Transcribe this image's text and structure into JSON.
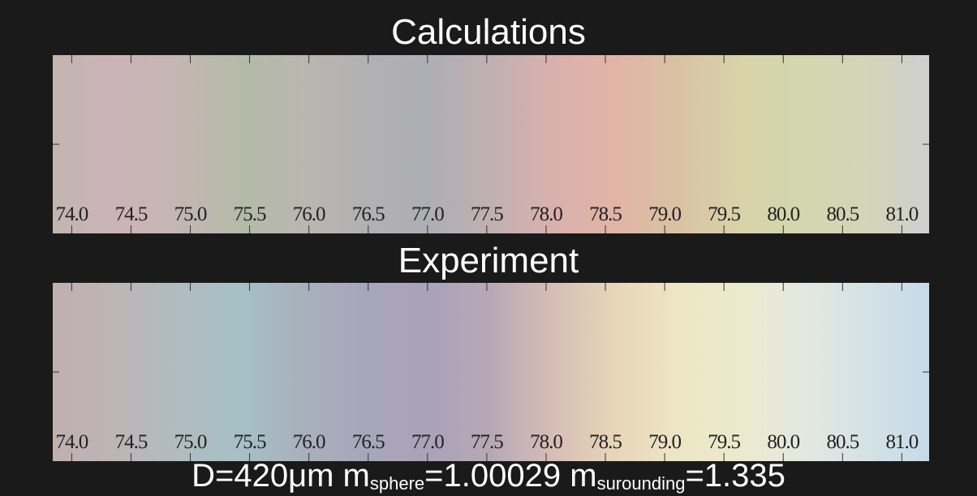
{
  "chart_data": [
    {
      "type": "spectrum",
      "title": "Calculations",
      "xlim": [
        73.84,
        81.23
      ],
      "xticks": [
        {
          "value": 74,
          "label": "74.0"
        },
        {
          "value": 74.5,
          "label": "74.5"
        },
        {
          "value": 75,
          "label": "75.0"
        },
        {
          "value": 75.5,
          "label": "75.5"
        },
        {
          "value": 76,
          "label": "76.0"
        },
        {
          "value": 76.5,
          "label": "76.5"
        },
        {
          "value": 77,
          "label": "77.0"
        },
        {
          "value": 77.5,
          "label": "77.5"
        },
        {
          "value": 78,
          "label": "78.0"
        },
        {
          "value": 78.5,
          "label": "78.5"
        },
        {
          "value": 79,
          "label": "79.0"
        },
        {
          "value": 79.5,
          "label": "79.5"
        },
        {
          "value": 80,
          "label": "80.0"
        },
        {
          "value": 80.5,
          "label": "80.5"
        },
        {
          "value": 81,
          "label": "81.0"
        }
      ],
      "colors": [
        "#c2b5b0",
        "#ccb3b8",
        "#c4b6b2",
        "#b5baa8",
        "#b8b7b0",
        "#b2b1b2",
        "#adaeb4",
        "#c0b0b2",
        "#d9b1ac",
        "#e1b4a6",
        "#d9c2a4",
        "#d8d3a8",
        "#d3d6ae",
        "#d2d5b8",
        "#cfcfd0"
      ]
    },
    {
      "type": "spectrum",
      "title": "Experiment",
      "xlim": [
        73.84,
        81.23
      ],
      "xticks": [
        {
          "value": 74,
          "label": "74.0"
        },
        {
          "value": 74.5,
          "label": "74.5"
        },
        {
          "value": 75,
          "label": "75.0"
        },
        {
          "value": 75.5,
          "label": "75.5"
        },
        {
          "value": 76,
          "label": "76.0"
        },
        {
          "value": 76.5,
          "label": "76.5"
        },
        {
          "value": 77,
          "label": "77.0"
        },
        {
          "value": 77.5,
          "label": "77.5"
        },
        {
          "value": 78,
          "label": "78.0"
        },
        {
          "value": 78.5,
          "label": "78.5"
        },
        {
          "value": 79,
          "label": "79.0"
        },
        {
          "value": 79.5,
          "label": "79.5"
        },
        {
          "value": 80,
          "label": "80.0"
        },
        {
          "value": 80.5,
          "label": "80.5"
        },
        {
          "value": 81,
          "label": "81.0"
        }
      ],
      "colors": [
        "#c0b0b0",
        "#bdb4b6",
        "#b0bcc0",
        "#a6c0c6",
        "#a8b0bc",
        "#a8a6ba",
        "#aaa2b8",
        "#b8a8b6",
        "#d6beb6",
        "#e8d6b8",
        "#ede6c4",
        "#eceacc",
        "#e4e8e0",
        "#d4e2e6",
        "#c6dae8"
      ]
    }
  ],
  "caption": {
    "parts": [
      "D=420μm m",
      "sphere",
      "=1.00029 m",
      "surounding",
      "=1.335"
    ]
  }
}
